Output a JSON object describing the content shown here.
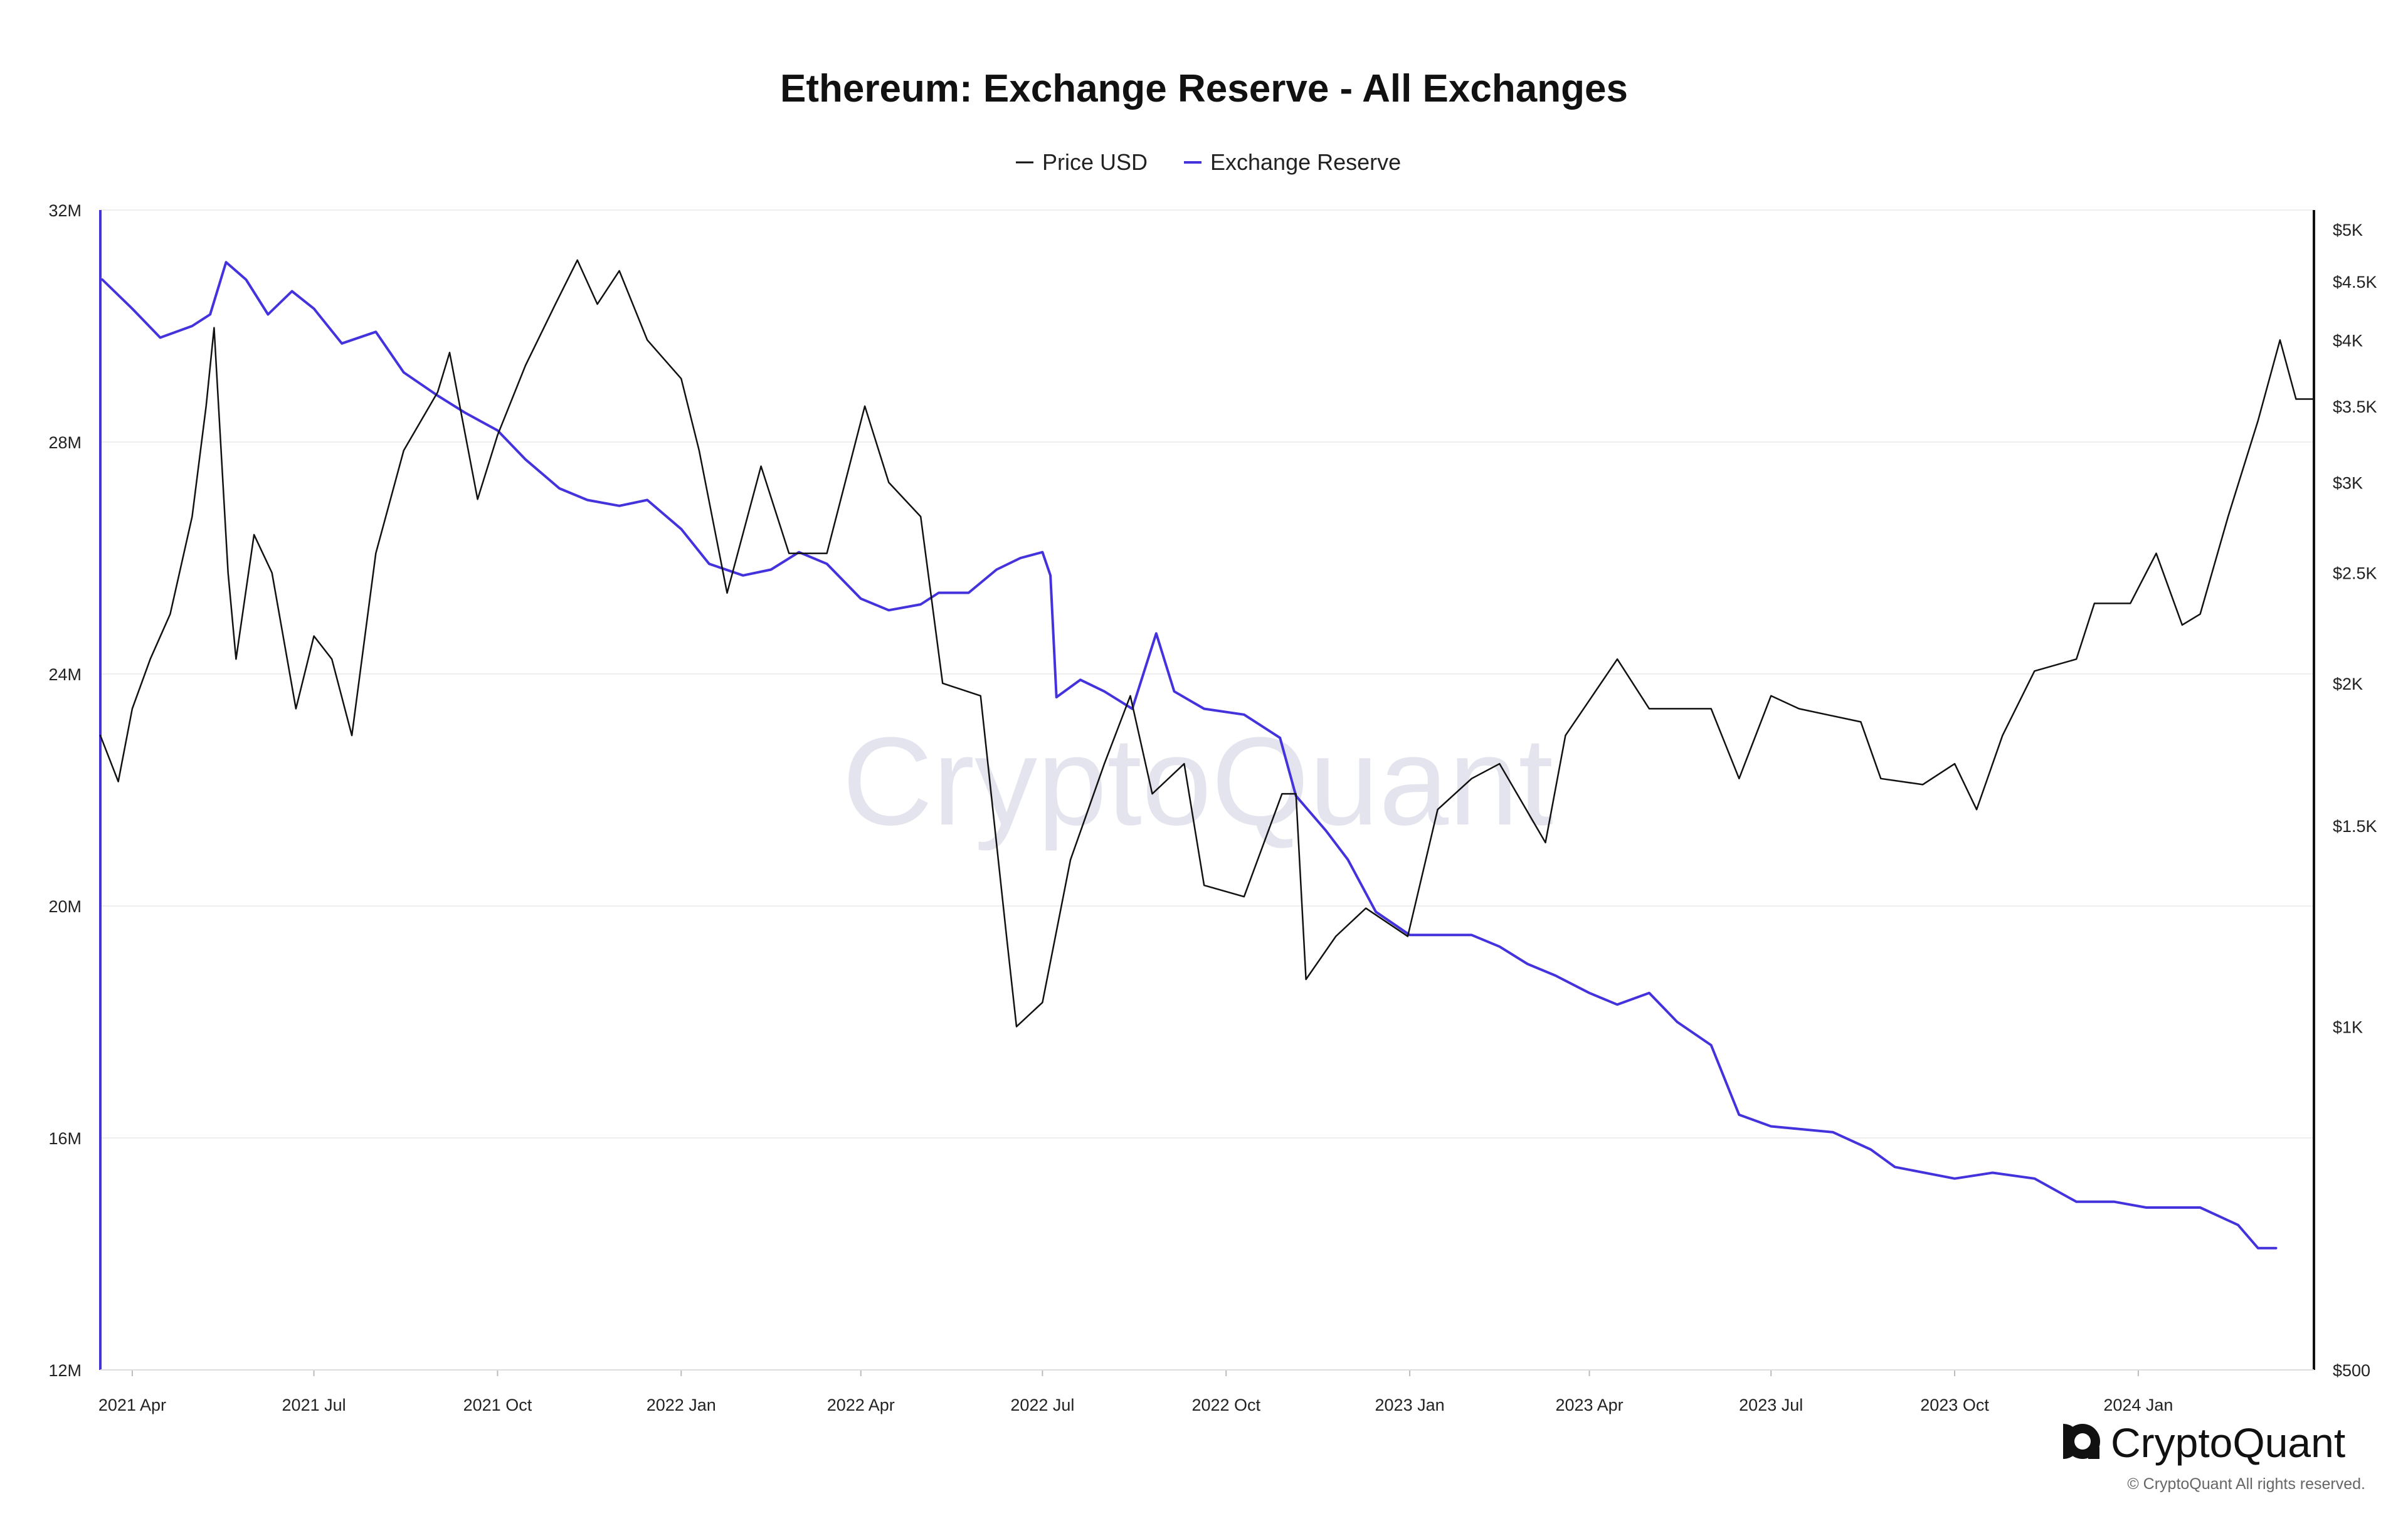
{
  "chart_data": {
    "type": "line",
    "title": "Ethereum: Exchange Reserve - All Exchanges",
    "legend": [
      "Price USD",
      "Exchange Reserve"
    ],
    "legend_position": "top-center",
    "colors": {
      "price": "#111111",
      "reserve": "#4433dd"
    },
    "x_ticks": [
      "2021 Apr",
      "2021 Jul",
      "2021 Oct",
      "2022 Jan",
      "2022 Apr",
      "2022 Jul",
      "2022 Oct",
      "2023 Jan",
      "2023 Apr",
      "2023 Jul",
      "2023 Oct",
      "2024 Jan"
    ],
    "x_range": [
      "2021-03-16",
      "2024-03-29"
    ],
    "y_left": {
      "label": "Exchange Reserve",
      "ticks": [
        "12M",
        "16M",
        "20M",
        "24M",
        "28M",
        "32M"
      ],
      "min": 12,
      "max": 32,
      "unit": "M"
    },
    "y_right": {
      "label": "Price USD",
      "scale": "log",
      "ticks": [
        "$500",
        "$1K",
        "$1.5K",
        "$2K",
        "$2.5K",
        "$3K",
        "$3.5K",
        "$4K",
        "$4.5K",
        "$5K"
      ],
      "min": 500,
      "max": 5200
    },
    "grid": true,
    "series": [
      {
        "name": "Exchange Reserve",
        "axis": "left",
        "points": [
          [
            "2021-03-17",
            30.8
          ],
          [
            "2021-04-01",
            30.3
          ],
          [
            "2021-04-15",
            29.8
          ],
          [
            "2021-05-01",
            30.0
          ],
          [
            "2021-05-10",
            30.2
          ],
          [
            "2021-05-18",
            31.1
          ],
          [
            "2021-05-28",
            30.8
          ],
          [
            "2021-06-08",
            30.2
          ],
          [
            "2021-06-20",
            30.6
          ],
          [
            "2021-07-01",
            30.3
          ],
          [
            "2021-07-15",
            29.7
          ],
          [
            "2021-08-01",
            29.9
          ],
          [
            "2021-08-15",
            29.2
          ],
          [
            "2021-09-01",
            28.8
          ],
          [
            "2021-09-15",
            28.5
          ],
          [
            "2021-10-01",
            28.2
          ],
          [
            "2021-10-15",
            27.7
          ],
          [
            "2021-11-01",
            27.2
          ],
          [
            "2021-11-15",
            27.0
          ],
          [
            "2021-12-01",
            26.9
          ],
          [
            "2021-12-15",
            27.0
          ],
          [
            "2022-01-01",
            26.5
          ],
          [
            "2022-01-15",
            25.9
          ],
          [
            "2022-02-01",
            25.7
          ],
          [
            "2022-02-15",
            25.8
          ],
          [
            "2022-03-01",
            26.1
          ],
          [
            "2022-03-15",
            25.9
          ],
          [
            "2022-04-01",
            25.3
          ],
          [
            "2022-04-15",
            25.1
          ],
          [
            "2022-05-01",
            25.2
          ],
          [
            "2022-05-10",
            25.4
          ],
          [
            "2022-05-25",
            25.4
          ],
          [
            "2022-06-08",
            25.8
          ],
          [
            "2022-06-20",
            26.0
          ],
          [
            "2022-07-01",
            26.1
          ],
          [
            "2022-07-05",
            25.7
          ],
          [
            "2022-07-08",
            23.6
          ],
          [
            "2022-07-20",
            23.9
          ],
          [
            "2022-08-01",
            23.7
          ],
          [
            "2022-08-15",
            23.4
          ],
          [
            "2022-08-27",
            24.7
          ],
          [
            "2022-09-05",
            23.7
          ],
          [
            "2022-09-20",
            23.4
          ],
          [
            "2022-10-10",
            23.3
          ],
          [
            "2022-10-28",
            22.9
          ],
          [
            "2022-11-05",
            21.9
          ],
          [
            "2022-11-20",
            21.3
          ],
          [
            "2022-12-01",
            20.8
          ],
          [
            "2022-12-15",
            19.9
          ],
          [
            "2023-01-01",
            19.5
          ],
          [
            "2023-02-01",
            19.5
          ],
          [
            "2023-02-15",
            19.3
          ],
          [
            "2023-03-01",
            19.0
          ],
          [
            "2023-03-15",
            18.8
          ],
          [
            "2023-04-01",
            18.5
          ],
          [
            "2023-04-15",
            18.3
          ],
          [
            "2023-05-01",
            18.5
          ],
          [
            "2023-05-15",
            18.0
          ],
          [
            "2023-06-01",
            17.6
          ],
          [
            "2023-06-15",
            16.4
          ],
          [
            "2023-07-01",
            16.2
          ],
          [
            "2023-08-01",
            16.1
          ],
          [
            "2023-08-20",
            15.8
          ],
          [
            "2023-09-01",
            15.5
          ],
          [
            "2023-10-01",
            15.3
          ],
          [
            "2023-10-20",
            15.4
          ],
          [
            "2023-11-10",
            15.3
          ],
          [
            "2023-12-01",
            14.9
          ],
          [
            "2023-12-20",
            14.9
          ],
          [
            "2024-01-05",
            14.8
          ],
          [
            "2024-02-01",
            14.8
          ],
          [
            "2024-02-20",
            14.5
          ],
          [
            "2024-03-01",
            14.1
          ],
          [
            "2024-03-10",
            14.1
          ]
        ]
      },
      {
        "name": "Price USD",
        "axis": "right",
        "points": [
          [
            "2021-03-16",
            1800
          ],
          [
            "2021-03-25",
            1640
          ],
          [
            "2021-04-01",
            1900
          ],
          [
            "2021-04-10",
            2100
          ],
          [
            "2021-04-20",
            2300
          ],
          [
            "2021-05-01",
            2800
          ],
          [
            "2021-05-08",
            3500
          ],
          [
            "2021-05-12",
            4100
          ],
          [
            "2021-05-19",
            2500
          ],
          [
            "2021-05-23",
            2100
          ],
          [
            "2021-06-01",
            2700
          ],
          [
            "2021-06-10",
            2500
          ],
          [
            "2021-06-22",
            1900
          ],
          [
            "2021-07-01",
            2200
          ],
          [
            "2021-07-10",
            2100
          ],
          [
            "2021-07-20",
            1800
          ],
          [
            "2021-08-01",
            2600
          ],
          [
            "2021-08-15",
            3200
          ],
          [
            "2021-09-01",
            3600
          ],
          [
            "2021-09-07",
            3900
          ],
          [
            "2021-09-21",
            2900
          ],
          [
            "2021-10-01",
            3300
          ],
          [
            "2021-10-15",
            3800
          ],
          [
            "2021-10-30",
            4300
          ],
          [
            "2021-11-10",
            4700
          ],
          [
            "2021-11-20",
            4300
          ],
          [
            "2021-12-01",
            4600
          ],
          [
            "2021-12-15",
            4000
          ],
          [
            "2022-01-01",
            3700
          ],
          [
            "2022-01-10",
            3200
          ],
          [
            "2022-01-24",
            2400
          ],
          [
            "2022-02-10",
            3100
          ],
          [
            "2022-02-24",
            2600
          ],
          [
            "2022-03-15",
            2600
          ],
          [
            "2022-04-03",
            3500
          ],
          [
            "2022-04-15",
            3000
          ],
          [
            "2022-05-01",
            2800
          ],
          [
            "2022-05-12",
            2000
          ],
          [
            "2022-05-31",
            1950
          ],
          [
            "2022-06-13",
            1200
          ],
          [
            "2022-06-18",
            1000
          ],
          [
            "2022-07-01",
            1050
          ],
          [
            "2022-07-15",
            1400
          ],
          [
            "2022-08-01",
            1700
          ],
          [
            "2022-08-14",
            1950
          ],
          [
            "2022-08-25",
            1600
          ],
          [
            "2022-09-10",
            1700
          ],
          [
            "2022-09-20",
            1330
          ],
          [
            "2022-10-10",
            1300
          ],
          [
            "2022-10-29",
            1600
          ],
          [
            "2022-11-05",
            1600
          ],
          [
            "2022-11-10",
            1100
          ],
          [
            "2022-11-25",
            1200
          ],
          [
            "2022-12-10",
            1270
          ],
          [
            "2022-12-31",
            1200
          ],
          [
            "2023-01-15",
            1550
          ],
          [
            "2023-02-01",
            1650
          ],
          [
            "2023-02-15",
            1700
          ],
          [
            "2023-03-10",
            1450
          ],
          [
            "2023-03-20",
            1800
          ],
          [
            "2023-04-15",
            2100
          ],
          [
            "2023-05-01",
            1900
          ],
          [
            "2023-06-01",
            1900
          ],
          [
            "2023-06-15",
            1650
          ],
          [
            "2023-07-01",
            1950
          ],
          [
            "2023-07-15",
            1900
          ],
          [
            "2023-08-15",
            1850
          ],
          [
            "2023-08-25",
            1650
          ],
          [
            "2023-09-15",
            1630
          ],
          [
            "2023-10-01",
            1700
          ],
          [
            "2023-10-12",
            1550
          ],
          [
            "2023-10-25",
            1800
          ],
          [
            "2023-11-10",
            2050
          ],
          [
            "2023-12-01",
            2100
          ],
          [
            "2023-12-10",
            2350
          ],
          [
            "2023-12-28",
            2350
          ],
          [
            "2024-01-10",
            2600
          ],
          [
            "2024-01-23",
            2250
          ],
          [
            "2024-02-01",
            2300
          ],
          [
            "2024-02-15",
            2800
          ],
          [
            "2024-03-01",
            3400
          ],
          [
            "2024-03-12",
            4000
          ],
          [
            "2024-03-20",
            3550
          ],
          [
            "2024-03-29",
            3550
          ]
        ]
      }
    ]
  },
  "watermark": "CryptoQuant",
  "brand": {
    "name": "CryptoQuant",
    "copyright": "© CryptoQuant All rights reserved."
  }
}
